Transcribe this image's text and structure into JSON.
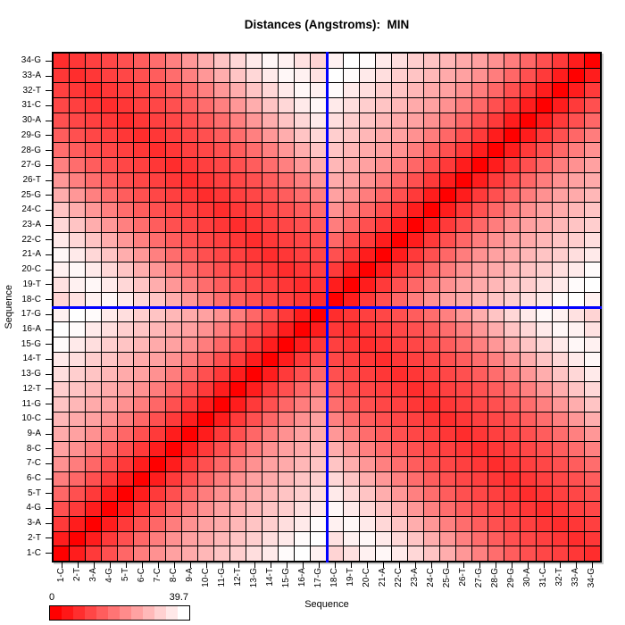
{
  "title": "Distances (Angstroms):  MIN",
  "x_axis": {
    "title": "Sequence"
  },
  "y_axis": {
    "title": "Sequence"
  },
  "legend": {
    "min_label": "0",
    "max_label": "39.7",
    "steps": 12
  },
  "colors": {
    "scale_low": "#ff0000",
    "scale_high": "#ffffff",
    "grid": "#000000",
    "crosshair": "#0000ff",
    "text": "#000000",
    "background": "#ffffff"
  },
  "crosshair": {
    "between_labels": [
      "17-G",
      "18-C"
    ],
    "boundary_index": 17
  },
  "chart_data": {
    "type": "heatmap",
    "title": "Distances (Angstroms):  MIN",
    "xlabel": "Sequence",
    "ylabel": "Sequence",
    "value_range": [
      0,
      39.7
    ],
    "legend_position": "bottom-left",
    "grid": true,
    "labels": [
      "1-C",
      "2-T",
      "3-A",
      "4-G",
      "5-T",
      "6-C",
      "7-C",
      "8-C",
      "9-A",
      "10-C",
      "11-G",
      "12-T",
      "13-G",
      "14-T",
      "15-G",
      "16-A",
      "17-G",
      "18-C",
      "19-T",
      "20-C",
      "21-A",
      "22-C",
      "23-A",
      "24-C",
      "25-G",
      "26-T",
      "27-G",
      "28-G",
      "29-G",
      "30-A",
      "31-C",
      "32-T",
      "33-A",
      "34-G"
    ],
    "strand_boundary": 17,
    "pair_sum": 35,
    "matrix_rule": "Symmetric min-atom distance matrix of a 17-bp DNA duplex (residues 1-17 = strand 1, 18-34 = complementary strand, base pairs satisfy i+j=35). d(i,i)=0; same-strand d(i,j)=intra_by_separation[|i-j|]; cross-strand d(i,j)=inter_by_pair_offset[|i+j-35|]. Values in Angstroms, estimated from pixel colors.",
    "intra_by_separation": [
      0,
      4.5,
      9.0,
      12.5,
      16.0,
      19.5,
      22.5,
      25.0,
      26.5,
      28.5,
      30.5,
      32.0,
      34.5,
      36.5,
      39.0,
      39.7,
      37.5
    ],
    "inter_by_pair_offset": [
      7.0,
      8.5,
      10.0,
      11.0,
      12.5,
      14.5,
      17.0,
      20.0,
      23.5,
      27.0,
      30.5,
      33.5,
      36.5,
      38.5,
      37.5,
      35.0,
      33.0
    ]
  }
}
